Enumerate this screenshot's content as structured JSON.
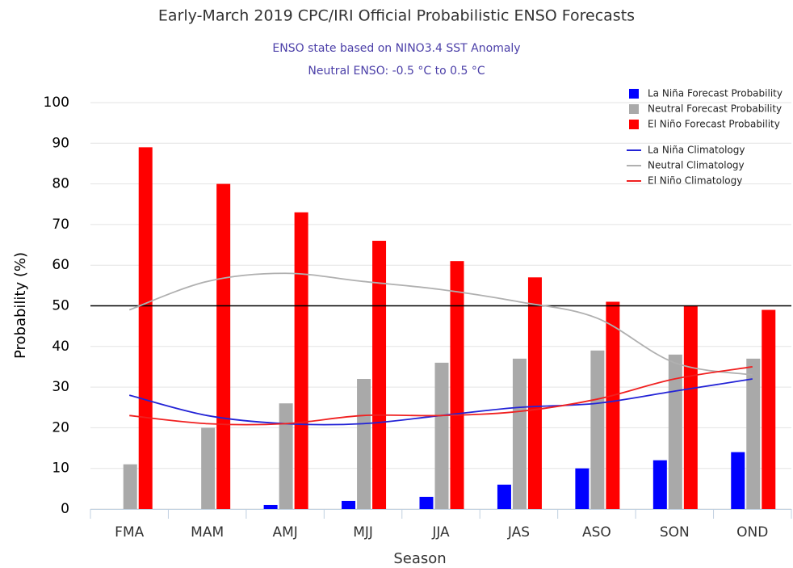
{
  "chart_data": {
    "type": "bar",
    "title": "Early-March 2019 CPC/IRI Official Probabilistic ENSO Forecasts",
    "subtitle": [
      "ENSO state based on NINO3.4 SST Anomaly",
      "Neutral ENSO: -0.5 °C to 0.5 °C"
    ],
    "x_label": "Season",
    "y_label": "Probability (%)",
    "categories": [
      "FMA",
      "MAM",
      "AMJ",
      "MJJ",
      "JJA",
      "JAS",
      "ASO",
      "SON",
      "OND"
    ],
    "series": [
      {
        "name": "La Niña Forecast Probability",
        "kind": "bar",
        "color": "#0000ff",
        "values": [
          0,
          0,
          1,
          2,
          3,
          6,
          10,
          12,
          14
        ]
      },
      {
        "name": "Neutral Forecast Probability",
        "kind": "bar",
        "color": "#a9a9a9",
        "values": [
          11,
          20,
          26,
          32,
          36,
          37,
          39,
          38,
          37
        ]
      },
      {
        "name": "El Niño Forecast Probability",
        "kind": "bar",
        "color": "#ff0000",
        "values": [
          89,
          80,
          73,
          66,
          61,
          57,
          51,
          50,
          49
        ]
      },
      {
        "name": "La Niña Climatology",
        "kind": "line",
        "color": "#2323d6",
        "values": [
          28,
          23,
          21,
          21,
          23,
          25,
          26,
          29,
          32
        ]
      },
      {
        "name": "Neutral Climatology",
        "kind": "line",
        "color": "#b0b0b0",
        "values": [
          49,
          56,
          58,
          56,
          54,
          51,
          47,
          36,
          33
        ]
      },
      {
        "name": "El Niño Climatology",
        "kind": "line",
        "color": "#f02020",
        "values": [
          23,
          21,
          21,
          23,
          23,
          24,
          27,
          32,
          35
        ]
      }
    ],
    "reference_line": 50,
    "ylim": [
      0,
      100
    ],
    "yticks": [
      0,
      10,
      20,
      30,
      40,
      50,
      60,
      70,
      80,
      90,
      100
    ],
    "grid": true,
    "legend": "top-right"
  }
}
